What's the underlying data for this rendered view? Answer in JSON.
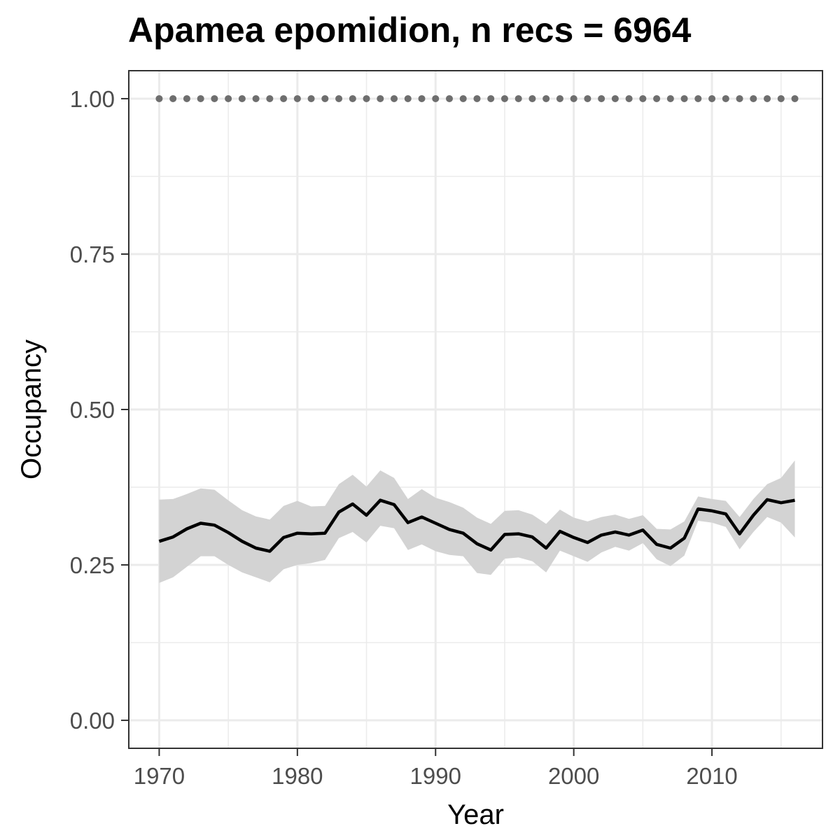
{
  "chart_data": {
    "type": "line",
    "title": "Apamea epomidion, n recs = 6964",
    "xlabel": "Year",
    "ylabel": "Occupancy",
    "xlim": [
      1967.8,
      2018
    ],
    "ylim": [
      -0.045,
      1.045
    ],
    "x_ticks": [
      1970,
      1980,
      1990,
      2000,
      2010
    ],
    "y_ticks": [
      0,
      0.25,
      0.5,
      0.75,
      1.0
    ],
    "y_tick_labels": [
      "0.00",
      "0.25",
      "0.50",
      "0.75",
      "1.00"
    ],
    "grid": true,
    "legend": "none",
    "colors": {
      "line": "#000000",
      "ribbon": "#d3d3d3",
      "points": "#6e6e6e",
      "grid": "#ebebeb",
      "panel_border": "#333333"
    },
    "x": [
      1970,
      1971,
      1972,
      1973,
      1974,
      1975,
      1976,
      1977,
      1978,
      1979,
      1980,
      1981,
      1982,
      1983,
      1984,
      1985,
      1986,
      1987,
      1988,
      1989,
      1990,
      1991,
      1992,
      1993,
      1994,
      1995,
      1996,
      1997,
      1998,
      1999,
      2000,
      2001,
      2002,
      2003,
      2004,
      2005,
      2006,
      2007,
      2008,
      2009,
      2010,
      2011,
      2012,
      2013,
      2014,
      2015,
      2016
    ],
    "series": [
      {
        "values": [
          0.288,
          0.295,
          0.308,
          0.317,
          0.314,
          0.302,
          0.288,
          0.277,
          0.272,
          0.294,
          0.301,
          0.3,
          0.301,
          0.335,
          0.348,
          0.33,
          0.354,
          0.347,
          0.318,
          0.327,
          0.317,
          0.307,
          0.301,
          0.284,
          0.274,
          0.299,
          0.3,
          0.295,
          0.277,
          0.304,
          0.294,
          0.286,
          0.298,
          0.303,
          0.298,
          0.306,
          0.283,
          0.277,
          0.293,
          0.34,
          0.337,
          0.332,
          0.3,
          0.33,
          0.355,
          0.35,
          0.354
        ],
        "lower": [
          0.221,
          0.23,
          0.247,
          0.264,
          0.264,
          0.25,
          0.238,
          0.23,
          0.222,
          0.243,
          0.25,
          0.253,
          0.258,
          0.293,
          0.303,
          0.286,
          0.313,
          0.309,
          0.274,
          0.283,
          0.272,
          0.266,
          0.264,
          0.237,
          0.234,
          0.26,
          0.262,
          0.256,
          0.238,
          0.273,
          0.264,
          0.255,
          0.27,
          0.279,
          0.273,
          0.285,
          0.259,
          0.248,
          0.265,
          0.321,
          0.318,
          0.311,
          0.275,
          0.303,
          0.327,
          0.318,
          0.294
        ],
        "upper": [
          0.355,
          0.356,
          0.364,
          0.373,
          0.371,
          0.354,
          0.338,
          0.328,
          0.323,
          0.345,
          0.353,
          0.344,
          0.345,
          0.38,
          0.395,
          0.376,
          0.402,
          0.39,
          0.356,
          0.372,
          0.358,
          0.351,
          0.342,
          0.326,
          0.316,
          0.337,
          0.338,
          0.331,
          0.316,
          0.339,
          0.326,
          0.32,
          0.327,
          0.331,
          0.324,
          0.33,
          0.308,
          0.307,
          0.32,
          0.36,
          0.356,
          0.353,
          0.327,
          0.356,
          0.38,
          0.39,
          0.418
        ]
      }
    ],
    "points": {
      "x": [
        1970,
        1971,
        1972,
        1973,
        1974,
        1975,
        1976,
        1977,
        1978,
        1979,
        1980,
        1981,
        1982,
        1983,
        1984,
        1985,
        1986,
        1987,
        1988,
        1989,
        1990,
        1991,
        1992,
        1993,
        1994,
        1995,
        1996,
        1997,
        1998,
        1999,
        2000,
        2001,
        2002,
        2003,
        2004,
        2005,
        2006,
        2007,
        2008,
        2009,
        2010,
        2011,
        2012,
        2013,
        2014,
        2015,
        2016
      ],
      "y": 1.0
    }
  }
}
